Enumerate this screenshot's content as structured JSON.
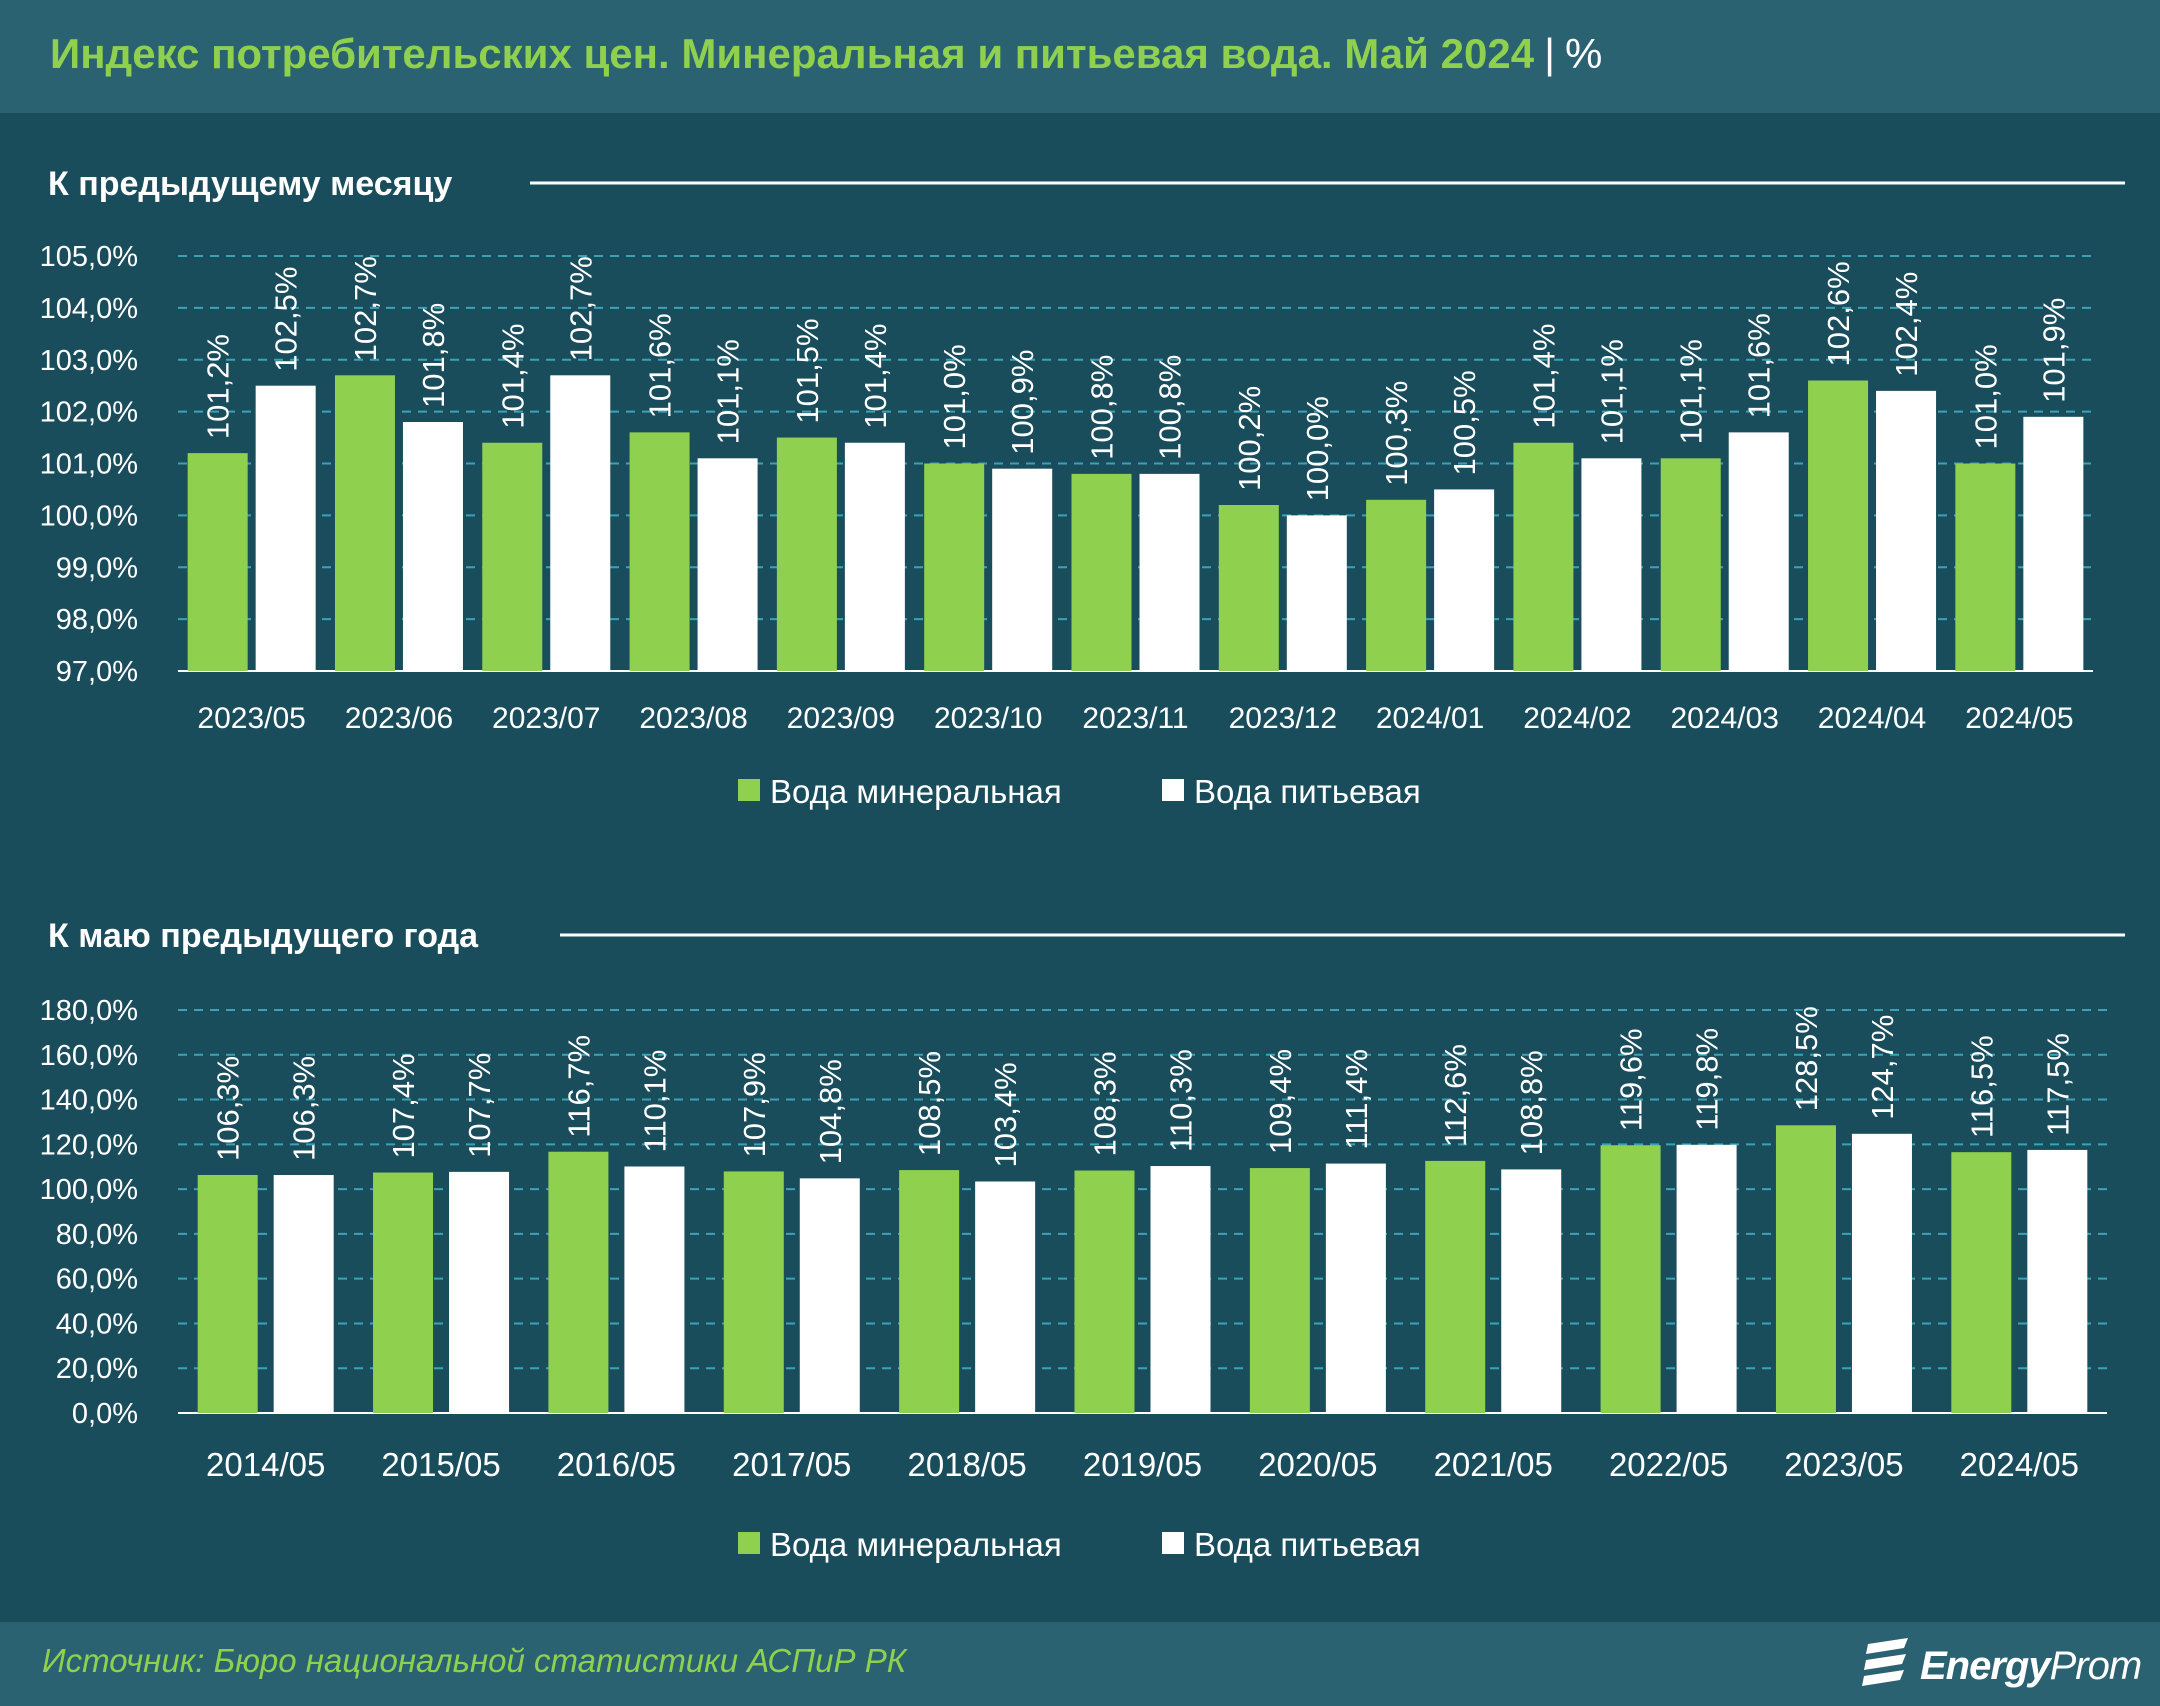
{
  "title": {
    "main": "Индекс потребительских цен. Минеральная и питьевая вода. Май 2024",
    "separator": "|",
    "unit": "%"
  },
  "source": "Источник: Бюро национальной статистики АСПиР РК",
  "logo": {
    "text_bold": "Energy",
    "text_regular": "Prom"
  },
  "colors": {
    "mineral": "#8fd14f",
    "drinking": "#ffffff",
    "background": "#1a4d5c",
    "grid": "#3aa3b8"
  },
  "chart_data": [
    {
      "type": "bar",
      "title": "К предыдущему месяцу",
      "categories": [
        "2023/05",
        "2023/06",
        "2023/07",
        "2023/08",
        "2023/09",
        "2023/10",
        "2023/11",
        "2023/12",
        "2024/01",
        "2024/02",
        "2024/03",
        "2024/04",
        "2024/05"
      ],
      "series": [
        {
          "name": "Вода минеральная",
          "values": [
            101.2,
            102.7,
            101.4,
            101.6,
            101.5,
            101.0,
            100.8,
            100.2,
            100.3,
            101.4,
            101.1,
            102.6,
            101.0
          ],
          "labels": [
            "101,2%",
            "102,7%",
            "101,4%",
            "101,6%",
            "101,5%",
            "101,0%",
            "100,8%",
            "100,2%",
            "100,3%",
            "101,4%",
            "101,1%",
            "102,6%",
            "101,0%"
          ]
        },
        {
          "name": "Вода питьевая",
          "values": [
            102.5,
            101.8,
            102.7,
            101.1,
            101.4,
            100.9,
            100.8,
            100.0,
            100.5,
            101.1,
            101.6,
            102.4,
            101.9
          ],
          "labels": [
            "102,5%",
            "101,8%",
            "102,7%",
            "101,1%",
            "101,4%",
            "100,9%",
            "100,8%",
            "100,0%",
            "100,5%",
            "101,1%",
            "101,6%",
            "102,4%",
            "101,9%"
          ]
        }
      ],
      "yticks": [
        "97,0%",
        "98,0%",
        "99,0%",
        "100,0%",
        "101,0%",
        "102,0%",
        "103,0%",
        "104,0%",
        "105,0%"
      ],
      "ylim": [
        97,
        105
      ],
      "grid": true,
      "legend": "bottom-center"
    },
    {
      "type": "bar",
      "title": "К маю предыдущего года",
      "categories": [
        "2014/05",
        "2015/05",
        "2016/05",
        "2017/05",
        "2018/05",
        "2019/05",
        "2020/05",
        "2021/05",
        "2022/05",
        "2023/05",
        "2024/05"
      ],
      "series": [
        {
          "name": "Вода минеральная",
          "values": [
            106.3,
            107.4,
            116.7,
            107.9,
            108.5,
            108.3,
            109.4,
            112.6,
            119.6,
            128.5,
            116.5
          ],
          "labels": [
            "106,3%",
            "107,4%",
            "116,7%",
            "107,9%",
            "108,5%",
            "108,3%",
            "109,4%",
            "112,6%",
            "119,6%",
            "128,5%",
            "116,5%"
          ]
        },
        {
          "name": "Вода питьевая",
          "values": [
            106.3,
            107.7,
            110.1,
            104.8,
            103.4,
            110.3,
            111.4,
            108.8,
            119.8,
            124.7,
            117.5
          ],
          "labels": [
            "106,3%",
            "107,7%",
            "110,1%",
            "104,8%",
            "103,4%",
            "110,3%",
            "111,4%",
            "108,8%",
            "119,8%",
            "124,7%",
            "117,5%"
          ]
        }
      ],
      "yticks": [
        "0,0%",
        "20,0%",
        "40,0%",
        "60,0%",
        "80,0%",
        "100,0%",
        "120,0%",
        "140,0%",
        "160,0%",
        "180,0%"
      ],
      "ylim": [
        0,
        180
      ],
      "grid": true,
      "legend": "bottom-center"
    }
  ]
}
